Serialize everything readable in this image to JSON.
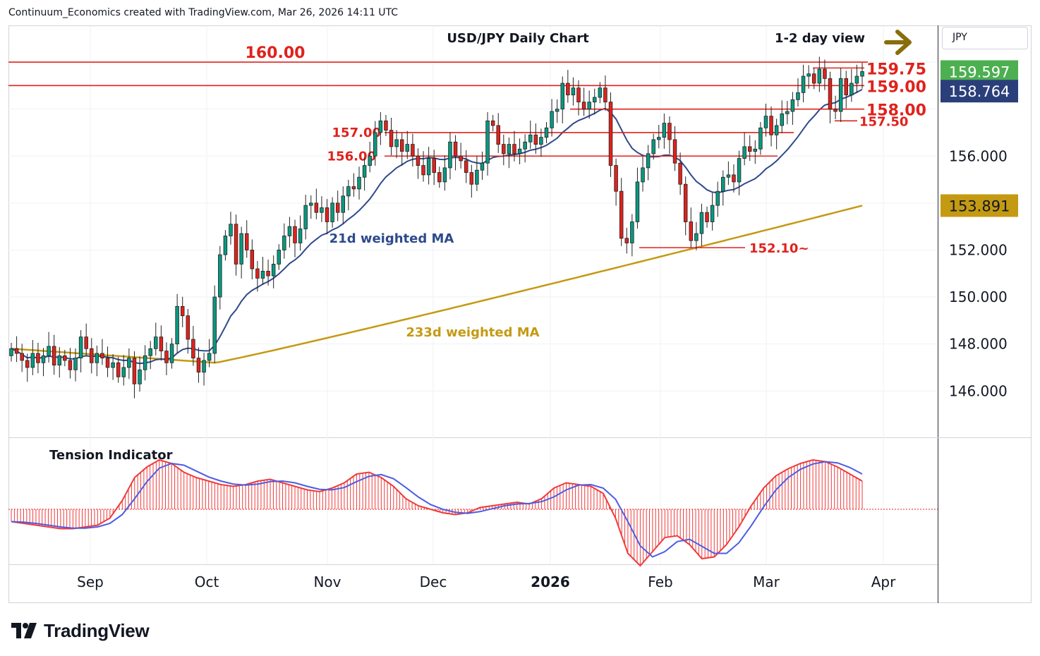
{
  "header": {
    "attribution": "Continuum_Economics created with TradingView.com, Mar 26, 2026 14:11 UTC"
  },
  "brand": {
    "name": "TradingView"
  },
  "colors": {
    "up": "#089981",
    "down": "#e0221c",
    "level": "#e0221c",
    "ma21": "#2e4a8c",
    "ma233": "#c49a13",
    "tension_line": "#ef3b3b",
    "tension_signal": "#4b5de4",
    "badge_last": "#4caf50",
    "badge_ma21": "#2a3f7a",
    "badge_ma233": "#c49a13",
    "arrow": "#8a6d0b"
  },
  "chart_data": [
    {
      "type": "candlestick",
      "title": "USD/JPY Daily Chart",
      "subtitle": "1-2 day view",
      "unit": "JPY",
      "x_tick_labels": [
        "Sep",
        "Oct",
        "Nov",
        "Dec",
        "2026",
        "Feb",
        "Mar",
        "Apr"
      ],
      "y_tick_labels": [
        "146.000",
        "148.000",
        "150.000",
        "152.000",
        "156.000"
      ],
      "ylim": [
        144.0,
        161.0
      ],
      "price_badges": [
        {
          "label": "159.597",
          "value": 159.597,
          "kind": "last"
        },
        {
          "label": "158.764",
          "value": 158.764,
          "kind": "ma21"
        },
        {
          "label": "153.891",
          "value": 153.891,
          "kind": "ma233"
        }
      ],
      "levels": [
        {
          "label": "160.00",
          "value": 160.0
        },
        {
          "label": "159.75",
          "value": 159.75
        },
        {
          "label": "159.00",
          "value": 159.0
        },
        {
          "label": "158.00",
          "value": 158.0
        },
        {
          "label": "157.50",
          "value": 157.5
        },
        {
          "label": "157.00",
          "value": 157.0
        },
        {
          "label": "156.00",
          "value": 156.0
        },
        {
          "label": "152.10~",
          "value": 152.1
        }
      ],
      "annotations": {
        "ma21_label": "21d weighted MA",
        "ma233_label": "233d weighted MA"
      },
      "series_close": [
        147.8,
        147.6,
        147.3,
        147.0,
        147.6,
        147.2,
        147.5,
        147.9,
        147.1,
        147.5,
        147.3,
        146.9,
        147.4,
        148.3,
        147.8,
        147.2,
        147.6,
        147.4,
        147.0,
        147.2,
        146.6,
        147.0,
        147.4,
        146.3,
        146.9,
        147.5,
        147.8,
        148.3,
        147.7,
        147.2,
        148.0,
        149.6,
        149.2,
        148.2,
        147.4,
        146.8,
        147.3,
        147.6,
        150.0,
        151.8,
        152.6,
        153.1,
        151.4,
        152.7,
        152.0,
        151.2,
        150.8,
        151.1,
        150.9,
        151.4,
        152.0,
        152.6,
        153.0,
        152.3,
        152.9,
        153.9,
        154.0,
        153.6,
        153.8,
        153.2,
        154.0,
        153.6,
        154.3,
        154.7,
        154.6,
        155.1,
        155.6,
        156.0,
        157.0,
        157.5,
        157.1,
        156.4,
        156.7,
        156.2,
        156.5,
        156.0,
        155.6,
        155.2,
        155.9,
        155.3,
        154.9,
        155.5,
        156.6,
        156.0,
        155.8,
        155.3,
        154.8,
        155.4,
        155.7,
        157.5,
        157.3,
        156.5,
        156.1,
        156.5,
        156.1,
        156.3,
        156.6,
        156.9,
        156.5,
        156.8,
        157.2,
        157.9,
        158.0,
        159.1,
        158.6,
        158.9,
        158.3,
        158.0,
        158.3,
        158.5,
        158.9,
        158.3,
        155.6,
        154.5,
        152.5,
        152.3,
        153.2,
        154.9,
        155.5,
        156.1,
        156.7,
        156.8,
        157.4,
        156.7,
        155.7,
        154.8,
        153.2,
        152.4,
        152.7,
        153.6,
        153.2,
        153.9,
        154.5,
        155.1,
        155.2,
        154.9,
        155.9,
        156.4,
        156.2,
        156.3,
        157.2,
        157.7,
        156.9,
        157.3,
        157.8,
        157.9,
        158.4,
        158.7,
        159.4,
        159.5,
        159.1,
        159.7,
        159.3,
        158.0,
        157.9,
        159.3,
        158.6,
        159.1,
        159.4,
        159.6
      ]
    },
    {
      "type": "line",
      "title": "Tension Indicator",
      "series": [
        {
          "values": [
            -0.7,
            -0.8,
            -0.9,
            -1.0,
            -1.1,
            -1.1,
            -1.0,
            -0.9,
            -0.5,
            0.5,
            1.8,
            2.4,
            2.8,
            2.6,
            2.1,
            1.8,
            1.6,
            1.4,
            1.3,
            1.4,
            1.6,
            1.7,
            1.5,
            1.3,
            1.1,
            1.0,
            1.2,
            1.5,
            2.0,
            2.1,
            1.8,
            1.3,
            0.6,
            0.2,
            0.0,
            -0.2,
            -0.3,
            -0.2,
            0.1,
            0.2,
            0.3,
            0.4,
            0.3,
            0.6,
            1.2,
            1.5,
            1.4,
            1.3,
            0.9,
            -0.5,
            -2.5,
            -3.2,
            -2.4,
            -1.6,
            -1.5,
            -2.0,
            -2.8,
            -2.7,
            -2.0,
            -1.0,
            0.2,
            1.2,
            1.9,
            2.3,
            2.6,
            2.8,
            2.7,
            2.4,
            2.0,
            1.6
          ]
        }
      ]
    }
  ],
  "axis": {
    "x_labels": [
      "Sep",
      "Oct",
      "Nov",
      "Dec",
      "2026",
      "Feb",
      "Mar",
      "Apr"
    ]
  }
}
